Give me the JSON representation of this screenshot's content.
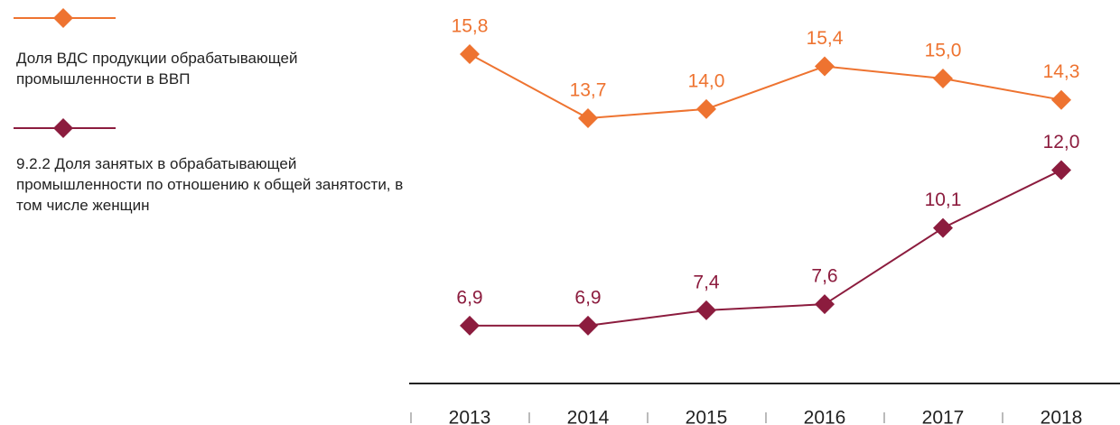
{
  "chart_data": {
    "type": "line",
    "categories": [
      "2013",
      "2014",
      "2015",
      "2016",
      "2017",
      "2018"
    ],
    "series": [
      {
        "name": "Доля ВДС продукции обрабатывающей промышленности в ВВП",
        "color": "#ee7330",
        "values": [
          15.8,
          13.7,
          14.0,
          15.4,
          15.0,
          14.3
        ],
        "value_labels": [
          "15,8",
          "13,7",
          "14,0",
          "15,4",
          "15,0",
          "14,3"
        ]
      },
      {
        "name": "9.2.2 Доля занятых в обрабатывающей промышленности по отношению к общей занятости, в том числе женщин",
        "color": "#8c1c3e",
        "values": [
          6.9,
          6.9,
          7.4,
          7.6,
          10.1,
          12.0
        ],
        "value_labels": [
          "6,9",
          "6,9",
          "7,4",
          "7,6",
          "10,1",
          "12,0"
        ]
      }
    ]
  }
}
